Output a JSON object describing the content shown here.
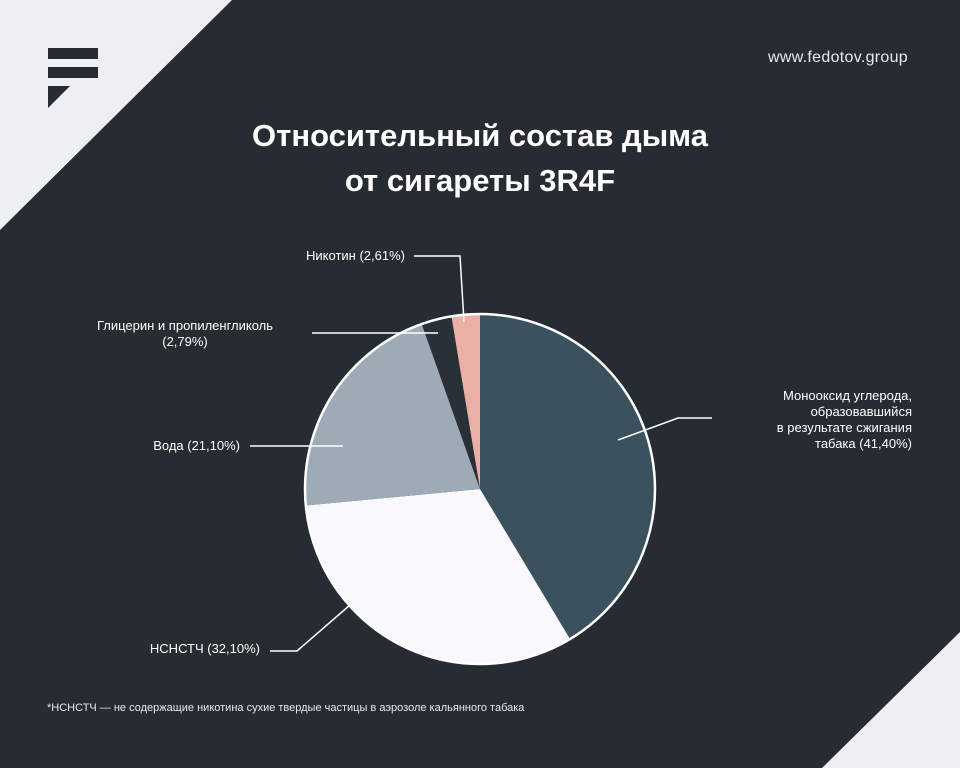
{
  "header": {
    "site_url": "www.fedotov.group",
    "logo_icon": "fedotov-logo-icon"
  },
  "colors": {
    "background": "#272c33",
    "corner": "#eeeff4",
    "text": "#ffffff"
  },
  "chart_data": {
    "type": "pie",
    "title_lines": [
      "Относительный состав дыма",
      "от сигареты 3R4F"
    ],
    "slices": [
      {
        "label": "Монооксид углерода, образовавшийся в результате сжигания табака",
        "label_lines": [
          "Монооксид углерода,",
          "образовавшийся",
          "в результате сжигания",
          "табака (41,40%)"
        ],
        "value": 41.4,
        "color": "#3b525e"
      },
      {
        "label": "НСНСТЧ",
        "label_lines": [
          "НСНСТЧ (32,10%)"
        ],
        "value": 32.1,
        "color": "#f8f8fd"
      },
      {
        "label": "Вода",
        "label_lines": [
          "Вода (21,10%)"
        ],
        "value": 21.1,
        "color": "#9eabb6"
      },
      {
        "label": "Глицерин и пропиленгликоль",
        "label_lines": [
          "Глицерин и пропиленгликоль",
          "(2,79%)"
        ],
        "value": 2.79,
        "color": "#2a3037"
      },
      {
        "label": "Никотин",
        "label_lines": [
          "Никотин (2,61%)"
        ],
        "value": 2.61,
        "color": "#eab0a5"
      }
    ],
    "start_angle": "12 o'clock",
    "direction": "clockwise",
    "legend": "none",
    "footnote": "*НСНСТЧ — не содержащие никотина сухие твердые частицы в аэрозоле кальянного табака"
  }
}
